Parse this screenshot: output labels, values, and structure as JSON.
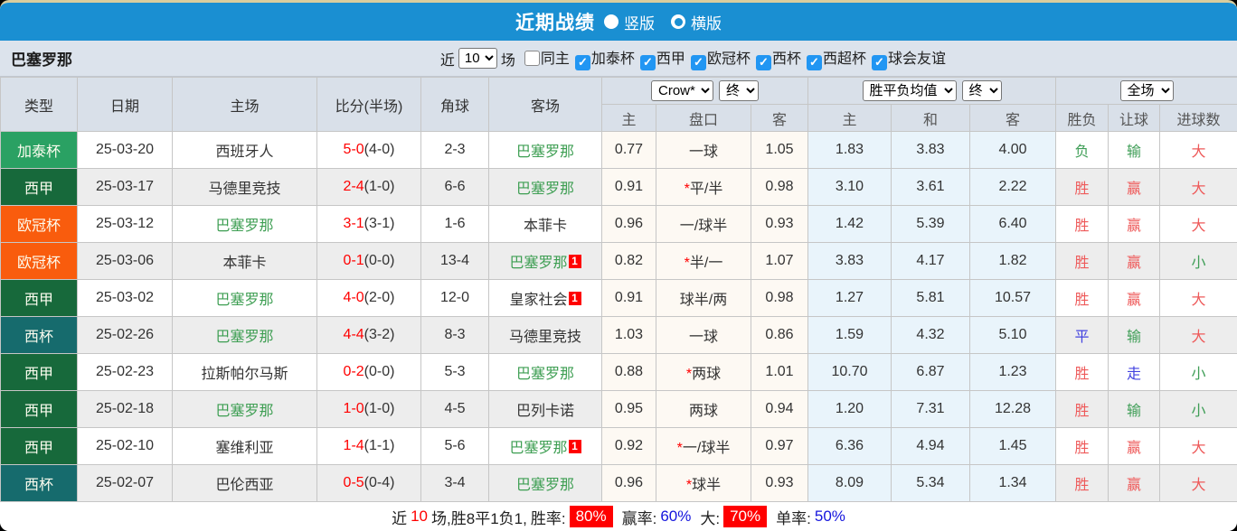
{
  "titlebar": {
    "title": "近期战绩",
    "radio_vertical": "竖版",
    "radio_horizontal": "横版"
  },
  "filterbar": {
    "team": "巴塞罗那",
    "recent_label": "近",
    "recent_value": "10",
    "games_label": "场",
    "checkboxes": [
      {
        "label": "同主",
        "checked": false
      },
      {
        "label": "加泰杯",
        "checked": true
      },
      {
        "label": "西甲",
        "checked": true
      },
      {
        "label": "欧冠杯",
        "checked": true
      },
      {
        "label": "西杯",
        "checked": true
      },
      {
        "label": "西超杯",
        "checked": true
      },
      {
        "label": "球会友谊",
        "checked": true
      }
    ]
  },
  "table": {
    "main_headers": [
      "类型",
      "日期",
      "主场",
      "比分(半场)",
      "角球",
      "客场"
    ],
    "selects": {
      "company": "Crow*",
      "company_time": "终",
      "avg": "胜平负均值",
      "avg_time": "终",
      "scope": "全场"
    },
    "subheaders": [
      "主",
      "盘口",
      "客",
      "主",
      "和",
      "客",
      "胜负",
      "让球",
      "进球数"
    ],
    "type_colors": {
      "加泰杯": "#2aa163",
      "西甲": "#17693b",
      "欧冠杯": "#f95c0d",
      "西杯": "#166b6d"
    },
    "rows": [
      {
        "type": "加泰杯",
        "date": "25-03-20",
        "home": "西班牙人",
        "home_is_team": false,
        "home_redcard": "",
        "score": "5-0",
        "half": "(4-0)",
        "corner": "2-3",
        "away": "巴塞罗那",
        "away_is_team": true,
        "away_redcard": "",
        "odds_home": "0.77",
        "handicap": "一球",
        "handicap_star": false,
        "odds_away": "1.05",
        "avg_win": "1.83",
        "avg_draw": "3.83",
        "avg_lose": "4.00",
        "wdl": "负",
        "wdl_color": "green",
        "let_result": "输",
        "let_color": "green",
        "goal_result": "大",
        "goal_color": "red"
      },
      {
        "type": "西甲",
        "date": "25-03-17",
        "home": "马德里竞技",
        "home_is_team": false,
        "home_redcard": "",
        "score": "2-4",
        "half": "(1-0)",
        "corner": "6-6",
        "away": "巴塞罗那",
        "away_is_team": true,
        "away_redcard": "",
        "odds_home": "0.91",
        "handicap": "平/半",
        "handicap_star": true,
        "odds_away": "0.98",
        "avg_win": "3.10",
        "avg_draw": "3.61",
        "avg_lose": "2.22",
        "wdl": "胜",
        "wdl_color": "red",
        "let_result": "赢",
        "let_color": "red",
        "goal_result": "大",
        "goal_color": "red"
      },
      {
        "type": "欧冠杯",
        "date": "25-03-12",
        "home": "巴塞罗那",
        "home_is_team": true,
        "home_redcard": "",
        "score": "3-1",
        "half": "(3-1)",
        "corner": "1-6",
        "away": "本菲卡",
        "away_is_team": false,
        "away_redcard": "",
        "odds_home": "0.96",
        "handicap": "一/球半",
        "handicap_star": false,
        "odds_away": "0.93",
        "avg_win": "1.42",
        "avg_draw": "5.39",
        "avg_lose": "6.40",
        "wdl": "胜",
        "wdl_color": "red",
        "let_result": "赢",
        "let_color": "red",
        "goal_result": "大",
        "goal_color": "red"
      },
      {
        "type": "欧冠杯",
        "date": "25-03-06",
        "home": "本菲卡",
        "home_is_team": false,
        "home_redcard": "",
        "score": "0-1",
        "half": "(0-0)",
        "corner": "13-4",
        "away": "巴塞罗那",
        "away_is_team": true,
        "away_redcard": "1",
        "odds_home": "0.82",
        "handicap": "半/一",
        "handicap_star": true,
        "odds_away": "1.07",
        "avg_win": "3.83",
        "avg_draw": "4.17",
        "avg_lose": "1.82",
        "wdl": "胜",
        "wdl_color": "red",
        "let_result": "赢",
        "let_color": "red",
        "goal_result": "小",
        "goal_color": "green"
      },
      {
        "type": "西甲",
        "date": "25-03-02",
        "home": "巴塞罗那",
        "home_is_team": true,
        "home_redcard": "",
        "score": "4-0",
        "half": "(2-0)",
        "corner": "12-0",
        "away": "皇家社会",
        "away_is_team": false,
        "away_redcard": "1",
        "odds_home": "0.91",
        "handicap": "球半/两",
        "handicap_star": false,
        "odds_away": "0.98",
        "avg_win": "1.27",
        "avg_draw": "5.81",
        "avg_lose": "10.57",
        "wdl": "胜",
        "wdl_color": "red",
        "let_result": "赢",
        "let_color": "red",
        "goal_result": "大",
        "goal_color": "red"
      },
      {
        "type": "西杯",
        "date": "25-02-26",
        "home": "巴塞罗那",
        "home_is_team": true,
        "home_redcard": "",
        "score": "4-4",
        "half": "(3-2)",
        "corner": "8-3",
        "away": "马德里竞技",
        "away_is_team": false,
        "away_redcard": "",
        "odds_home": "1.03",
        "handicap": "一球",
        "handicap_star": false,
        "odds_away": "0.86",
        "avg_win": "1.59",
        "avg_draw": "4.32",
        "avg_lose": "5.10",
        "wdl": "平",
        "wdl_color": "blue",
        "let_result": "输",
        "let_color": "green",
        "goal_result": "大",
        "goal_color": "red"
      },
      {
        "type": "西甲",
        "date": "25-02-23",
        "home": "拉斯帕尔马斯",
        "home_is_team": false,
        "home_redcard": "",
        "score": "0-2",
        "half": "(0-0)",
        "corner": "5-3",
        "away": "巴塞罗那",
        "away_is_team": true,
        "away_redcard": "",
        "odds_home": "0.88",
        "handicap": "两球",
        "handicap_star": true,
        "odds_away": "1.01",
        "avg_win": "10.70",
        "avg_draw": "6.87",
        "avg_lose": "1.23",
        "wdl": "胜",
        "wdl_color": "red",
        "let_result": "走",
        "let_color": "blue",
        "goal_result": "小",
        "goal_color": "green"
      },
      {
        "type": "西甲",
        "date": "25-02-18",
        "home": "巴塞罗那",
        "home_is_team": true,
        "home_redcard": "",
        "score": "1-0",
        "half": "(1-0)",
        "corner": "4-5",
        "away": "巴列卡诺",
        "away_is_team": false,
        "away_redcard": "",
        "odds_home": "0.95",
        "handicap": "两球",
        "handicap_star": false,
        "odds_away": "0.94",
        "avg_win": "1.20",
        "avg_draw": "7.31",
        "avg_lose": "12.28",
        "wdl": "胜",
        "wdl_color": "red",
        "let_result": "输",
        "let_color": "green",
        "goal_result": "小",
        "goal_color": "green"
      },
      {
        "type": "西甲",
        "date": "25-02-10",
        "home": "塞维利亚",
        "home_is_team": false,
        "home_redcard": "",
        "score": "1-4",
        "half": "(1-1)",
        "corner": "5-6",
        "away": "巴塞罗那",
        "away_is_team": true,
        "away_redcard": "1",
        "odds_home": "0.92",
        "handicap": "一/球半",
        "handicap_star": true,
        "odds_away": "0.97",
        "avg_win": "6.36",
        "avg_draw": "4.94",
        "avg_lose": "1.45",
        "wdl": "胜",
        "wdl_color": "red",
        "let_result": "赢",
        "let_color": "red",
        "goal_result": "大",
        "goal_color": "red"
      },
      {
        "type": "西杯",
        "date": "25-02-07",
        "home": "巴伦西亚",
        "home_is_team": false,
        "home_redcard": "",
        "score": "0-5",
        "half": "(0-4)",
        "corner": "3-4",
        "away": "巴塞罗那",
        "away_is_team": true,
        "away_redcard": "",
        "odds_home": "0.96",
        "handicap": "球半",
        "handicap_star": true,
        "odds_away": "0.93",
        "avg_win": "8.09",
        "avg_draw": "5.34",
        "avg_lose": "1.34",
        "wdl": "胜",
        "wdl_color": "red",
        "let_result": "赢",
        "let_color": "red",
        "goal_result": "大",
        "goal_color": "red"
      }
    ]
  },
  "footer": {
    "prefix": "近",
    "count": "10",
    "summary": "场,胜8平1负1,",
    "winrate_label": "胜率:",
    "winrate": "80%",
    "handicap_label": "赢率:",
    "handicap_rate": "60%",
    "big_label": "大:",
    "big_rate": "70%",
    "single_label": "单率:",
    "single_rate": "50%"
  }
}
